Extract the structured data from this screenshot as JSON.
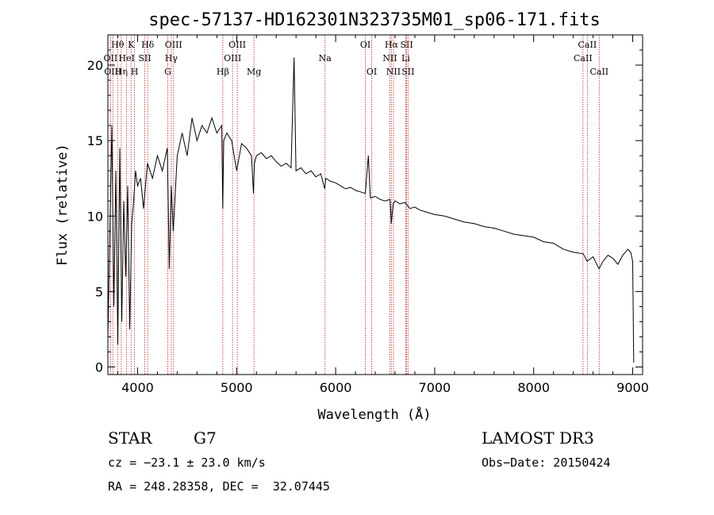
{
  "chart_data": {
    "type": "line",
    "title": "spec-57137-HD162301N323735M01_sp06-171.fits",
    "xlabel": "Wavelength (Å)",
    "ylabel": "Flux (relative)",
    "xlim": [
      3700,
      9100
    ],
    "ylim": [
      -0.5,
      22
    ],
    "xticks": [
      4000,
      5000,
      6000,
      7000,
      8000,
      9000
    ],
    "yticks": [
      0,
      5,
      10,
      15,
      20
    ],
    "grid": false,
    "series": [
      {
        "name": "spectrum",
        "x": [
          3700,
          3720,
          3740,
          3760,
          3780,
          3800,
          3820,
          3840,
          3860,
          3880,
          3900,
          3920,
          3940,
          3960,
          3980,
          4000,
          4030,
          4060,
          4100,
          4150,
          4200,
          4250,
          4300,
          4320,
          4340,
          4360,
          4400,
          4450,
          4500,
          4550,
          4600,
          4650,
          4700,
          4750,
          4800,
          4850,
          4860,
          4870,
          4900,
          4950,
          5000,
          5050,
          5100,
          5150,
          5170,
          5180,
          5200,
          5250,
          5300,
          5350,
          5400,
          5450,
          5500,
          5550,
          5580,
          5600,
          5650,
          5700,
          5750,
          5800,
          5850,
          5890,
          5900,
          5950,
          6000,
          6050,
          6100,
          6150,
          6200,
          6250,
          6300,
          6330,
          6350,
          6400,
          6450,
          6500,
          6550,
          6563,
          6580,
          6600,
          6650,
          6700,
          6750,
          6800,
          6850,
          6900,
          6950,
          7000,
          7100,
          7200,
          7300,
          7400,
          7500,
          7600,
          7700,
          7800,
          7900,
          8000,
          8100,
          8200,
          8300,
          8400,
          8500,
          8540,
          8600,
          8660,
          8700,
          8750,
          8800,
          8850,
          8900,
          8950,
          8980,
          9000,
          9010
        ],
        "values": [
          2.0,
          9.0,
          16.0,
          4.0,
          13.0,
          1.5,
          14.5,
          3.0,
          11.0,
          6.0,
          12.0,
          2.5,
          9.5,
          11.0,
          13.0,
          12.0,
          12.5,
          10.5,
          13.5,
          12.5,
          14.0,
          13.0,
          14.5,
          6.5,
          12.0,
          9.0,
          14.0,
          15.5,
          14.0,
          16.5,
          15.0,
          16.0,
          15.5,
          16.5,
          15.5,
          16.0,
          10.5,
          15.0,
          15.5,
          15.0,
          13.0,
          14.8,
          14.5,
          14.0,
          11.5,
          13.5,
          14.0,
          14.2,
          13.8,
          14.0,
          13.6,
          13.3,
          13.5,
          13.2,
          20.5,
          13.0,
          13.2,
          12.8,
          13.0,
          12.6,
          12.8,
          11.8,
          12.5,
          12.3,
          12.2,
          12.0,
          11.8,
          11.9,
          11.7,
          11.6,
          11.5,
          14.0,
          11.2,
          11.3,
          11.1,
          11.0,
          11.1,
          9.5,
          10.8,
          11.0,
          10.8,
          10.9,
          10.5,
          10.6,
          10.4,
          10.3,
          10.2,
          10.1,
          10.0,
          9.8,
          9.6,
          9.5,
          9.3,
          9.2,
          9.0,
          8.8,
          8.7,
          8.6,
          8.3,
          8.2,
          7.8,
          7.6,
          7.5,
          7.0,
          7.3,
          6.5,
          7.0,
          7.4,
          7.2,
          6.8,
          7.4,
          7.8,
          7.6,
          7.0,
          0.3
        ]
      }
    ],
    "spectral_lines": [
      {
        "name": "Hθ",
        "wl": 3798,
        "row": 0
      },
      {
        "name": "OII",
        "wl": 3727,
        "row": 1
      },
      {
        "name": "OIII",
        "wl": 3750,
        "row": 2
      },
      {
        "name": "Hη",
        "wl": 3835,
        "row": 2
      },
      {
        "name": "K",
        "wl": 3934,
        "row": 0
      },
      {
        "name": "HeI",
        "wl": 3889,
        "row": 1
      },
      {
        "name": "H",
        "wl": 3969,
        "row": 2
      },
      {
        "name": "SII",
        "wl": 4072,
        "row": 1
      },
      {
        "name": "Hδ",
        "wl": 4102,
        "row": 0
      },
      {
        "name": "OIII",
        "wl": 4363,
        "row": 0
      },
      {
        "name": "Hγ",
        "wl": 4340,
        "row": 1
      },
      {
        "name": "G",
        "wl": 4305,
        "row": 2
      },
      {
        "name": "Hβ",
        "wl": 4861,
        "row": 2
      },
      {
        "name": "OIII",
        "wl": 4959,
        "row": 1
      },
      {
        "name": "OIII",
        "wl": 5007,
        "row": 0
      },
      {
        "name": "Mg",
        "wl": 5175,
        "row": 2
      },
      {
        "name": "Na",
        "wl": 5893,
        "row": 1
      },
      {
        "name": "OI",
        "wl": 6300,
        "row": 0
      },
      {
        "name": "OI",
        "wl": 6364,
        "row": 2
      },
      {
        "name": "Hα",
        "wl": 6563,
        "row": 0
      },
      {
        "name": "NII",
        "wl": 6548,
        "row": 1
      },
      {
        "name": "NII",
        "wl": 6584,
        "row": 2
      },
      {
        "name": "SII",
        "wl": 6717,
        "row": 0
      },
      {
        "name": "Li",
        "wl": 6708,
        "row": 1
      },
      {
        "name": "SII",
        "wl": 6731,
        "row": 2
      },
      {
        "name": "CaII",
        "wl": 8542,
        "row": 0
      },
      {
        "name": "CaII",
        "wl": 8498,
        "row": 1
      },
      {
        "name": "CaII",
        "wl": 8662,
        "row": 2
      }
    ]
  },
  "info": {
    "object_type": "STAR",
    "subclass": "G7",
    "survey": "LAMOST DR3",
    "cz_text": "cz = −23.1 ± 23.0 km/s",
    "obs_date_text": "Obs−Date: 20150424",
    "coords_text": "RA = 248.28358, DEC =  32.07445"
  },
  "colors": {
    "spectrum": "#000000",
    "line_marker": "#b22222",
    "axis": "#000000"
  }
}
